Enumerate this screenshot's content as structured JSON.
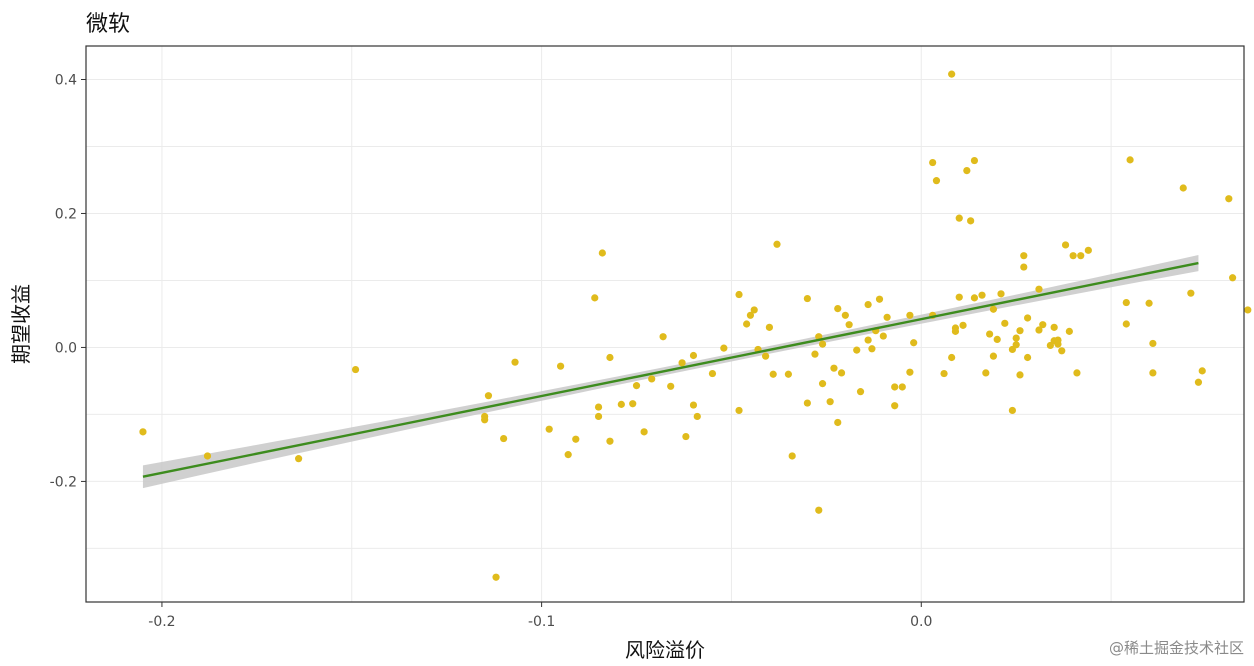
{
  "chart_data": {
    "type": "scatter",
    "title": "微软",
    "xlabel": "风险溢价",
    "ylabel": "期望收益",
    "xlim": [
      -0.22,
      0.085
    ],
    "ylim": [
      -0.38,
      0.45
    ],
    "x_ticks": [
      -0.2,
      -0.1,
      0.0
    ],
    "x_tick_labels": [
      "-0.2",
      "-0.1",
      "0.0"
    ],
    "y_ticks": [
      -0.2,
      0.0,
      0.2,
      0.4
    ],
    "y_tick_labels": [
      "-0.2",
      "0.0",
      "0.2",
      "0.4"
    ],
    "grid": true,
    "legend": "none",
    "point_color": "#e0bb1c",
    "line_color": "#3d8c1e",
    "band_color": "#c8c8c8",
    "fit_line": {
      "x": [
        -0.205,
        0.073
      ],
      "y": [
        -0.193,
        0.126
      ]
    },
    "fit_band_halfwidth": [
      0.017,
      0.006,
      0.012
    ],
    "points": [
      [
        -0.205,
        -0.126
      ],
      [
        -0.188,
        -0.162
      ],
      [
        -0.164,
        -0.166
      ],
      [
        -0.149,
        -0.033
      ],
      [
        -0.114,
        -0.072
      ],
      [
        -0.115,
        -0.103
      ],
      [
        -0.115,
        -0.108
      ],
      [
        -0.11,
        -0.136
      ],
      [
        -0.112,
        -0.343
      ],
      [
        -0.107,
        -0.022
      ],
      [
        -0.098,
        -0.122
      ],
      [
        -0.095,
        -0.028
      ],
      [
        -0.093,
        -0.16
      ],
      [
        -0.091,
        -0.137
      ],
      [
        -0.086,
        0.074
      ],
      [
        -0.084,
        0.141
      ],
      [
        -0.085,
        -0.089
      ],
      [
        -0.085,
        -0.103
      ],
      [
        -0.082,
        -0.015
      ],
      [
        -0.082,
        -0.14
      ],
      [
        -0.079,
        -0.085
      ],
      [
        -0.076,
        -0.084
      ],
      [
        -0.075,
        -0.057
      ],
      [
        -0.073,
        -0.126
      ],
      [
        -0.071,
        -0.047
      ],
      [
        -0.068,
        0.016
      ],
      [
        -0.066,
        -0.058
      ],
      [
        -0.063,
        -0.023
      ],
      [
        -0.062,
        -0.133
      ],
      [
        -0.06,
        -0.012
      ],
      [
        -0.06,
        -0.086
      ],
      [
        -0.059,
        -0.103
      ],
      [
        -0.055,
        -0.039
      ],
      [
        -0.052,
        -0.001
      ],
      [
        -0.048,
        0.079
      ],
      [
        -0.048,
        -0.094
      ],
      [
        -0.046,
        0.035
      ],
      [
        -0.045,
        0.048
      ],
      [
        -0.044,
        0.056
      ],
      [
        -0.043,
        -0.003
      ],
      [
        -0.041,
        -0.013
      ],
      [
        -0.04,
        0.03
      ],
      [
        -0.039,
        -0.04
      ],
      [
        -0.038,
        0.154
      ],
      [
        -0.035,
        -0.04
      ],
      [
        -0.034,
        -0.162
      ],
      [
        -0.03,
        0.073
      ],
      [
        -0.03,
        -0.083
      ],
      [
        -0.028,
        -0.01
      ],
      [
        -0.027,
        -0.243
      ],
      [
        -0.027,
        0.016
      ],
      [
        -0.026,
        0.005
      ],
      [
        -0.026,
        -0.054
      ],
      [
        -0.024,
        -0.081
      ],
      [
        -0.023,
        -0.031
      ],
      [
        -0.022,
        0.058
      ],
      [
        -0.022,
        -0.112
      ],
      [
        -0.021,
        -0.038
      ],
      [
        -0.02,
        0.048
      ],
      [
        -0.019,
        0.034
      ],
      [
        -0.017,
        -0.004
      ],
      [
        -0.016,
        -0.066
      ],
      [
        -0.014,
        0.064
      ],
      [
        -0.014,
        0.011
      ],
      [
        -0.013,
        -0.002
      ],
      [
        -0.012,
        0.025
      ],
      [
        -0.011,
        0.072
      ],
      [
        -0.01,
        0.017
      ],
      [
        -0.009,
        0.045
      ],
      [
        -0.007,
        -0.059
      ],
      [
        -0.007,
        -0.087
      ],
      [
        -0.005,
        -0.059
      ],
      [
        -0.003,
        -0.037
      ],
      [
        -0.003,
        0.048
      ],
      [
        -0.002,
        0.007
      ],
      [
        0.003,
        0.048
      ],
      [
        0.003,
        0.276
      ],
      [
        0.004,
        0.249
      ],
      [
        0.006,
        -0.039
      ],
      [
        0.008,
        0.408
      ],
      [
        0.008,
        -0.015
      ],
      [
        0.009,
        0.029
      ],
      [
        0.009,
        0.024
      ],
      [
        0.01,
        0.193
      ],
      [
        0.01,
        0.075
      ],
      [
        0.011,
        0.033
      ],
      [
        0.012,
        0.264
      ],
      [
        0.013,
        0.189
      ],
      [
        0.014,
        0.279
      ],
      [
        0.014,
        0.074
      ],
      [
        0.016,
        0.078
      ],
      [
        0.017,
        -0.038
      ],
      [
        0.018,
        0.02
      ],
      [
        0.019,
        0.057
      ],
      [
        0.019,
        -0.013
      ],
      [
        0.02,
        0.012
      ],
      [
        0.021,
        0.08
      ],
      [
        0.022,
        0.036
      ],
      [
        0.024,
        -0.003
      ],
      [
        0.024,
        -0.094
      ],
      [
        0.025,
        0.004
      ],
      [
        0.025,
        0.014
      ],
      [
        0.026,
        -0.041
      ],
      [
        0.026,
        0.025
      ],
      [
        0.027,
        0.12
      ],
      [
        0.027,
        0.137
      ],
      [
        0.028,
        -0.015
      ],
      [
        0.028,
        0.044
      ],
      [
        0.031,
        0.087
      ],
      [
        0.031,
        0.026
      ],
      [
        0.032,
        0.034
      ],
      [
        0.034,
        0.003
      ],
      [
        0.035,
        0.01
      ],
      [
        0.035,
        0.03
      ],
      [
        0.036,
        0.005
      ],
      [
        0.036,
        0.011
      ],
      [
        0.037,
        -0.005
      ],
      [
        0.038,
        0.153
      ],
      [
        0.039,
        0.024
      ],
      [
        0.04,
        0.137
      ],
      [
        0.041,
        -0.038
      ],
      [
        0.042,
        0.137
      ],
      [
        0.044,
        0.145
      ],
      [
        0.054,
        0.067
      ],
      [
        0.054,
        0.035
      ],
      [
        0.055,
        0.28
      ],
      [
        0.06,
        0.066
      ],
      [
        0.061,
        0.006
      ],
      [
        0.061,
        -0.038
      ],
      [
        0.069,
        0.238
      ],
      [
        0.071,
        0.081
      ],
      [
        0.073,
        -0.052
      ],
      [
        0.074,
        -0.035
      ],
      [
        0.081,
        0.222
      ],
      [
        0.082,
        0.104
      ],
      [
        0.086,
        0.056
      ]
    ]
  },
  "watermark": "@稀土掘金技术社区"
}
